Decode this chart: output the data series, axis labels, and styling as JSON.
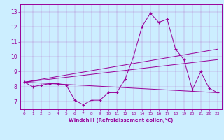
{
  "xlabel": "Windchill (Refroidissement éolien,°C)",
  "background_color": "#cceeff",
  "line_color": "#990099",
  "xlim": [
    -0.5,
    23.5
  ],
  "ylim": [
    6.5,
    13.5
  ],
  "yticks": [
    7,
    8,
    9,
    10,
    11,
    12,
    13
  ],
  "xticks": [
    0,
    1,
    2,
    3,
    4,
    5,
    6,
    7,
    8,
    9,
    10,
    11,
    12,
    13,
    14,
    15,
    16,
    17,
    18,
    19,
    20,
    21,
    22,
    23
  ],
  "line1_x": [
    0,
    1,
    2,
    3,
    4,
    5,
    6,
    7,
    8,
    9,
    10,
    11,
    12,
    13,
    14,
    15,
    16,
    17,
    18,
    19,
    20,
    21,
    22,
    23
  ],
  "line1_y": [
    8.3,
    8.0,
    8.1,
    8.2,
    8.2,
    8.1,
    7.1,
    6.8,
    7.1,
    7.1,
    7.6,
    7.6,
    8.5,
    10.0,
    12.0,
    12.9,
    12.3,
    12.5,
    10.5,
    9.8,
    7.8,
    9.0,
    7.9,
    7.6
  ],
  "line2_x": [
    0,
    23
  ],
  "line2_y": [
    8.3,
    7.6
  ],
  "line3_x": [
    0,
    23
  ],
  "line3_y": [
    8.3,
    10.5
  ],
  "line4_x": [
    0,
    23
  ],
  "line4_y": [
    8.3,
    9.8
  ]
}
